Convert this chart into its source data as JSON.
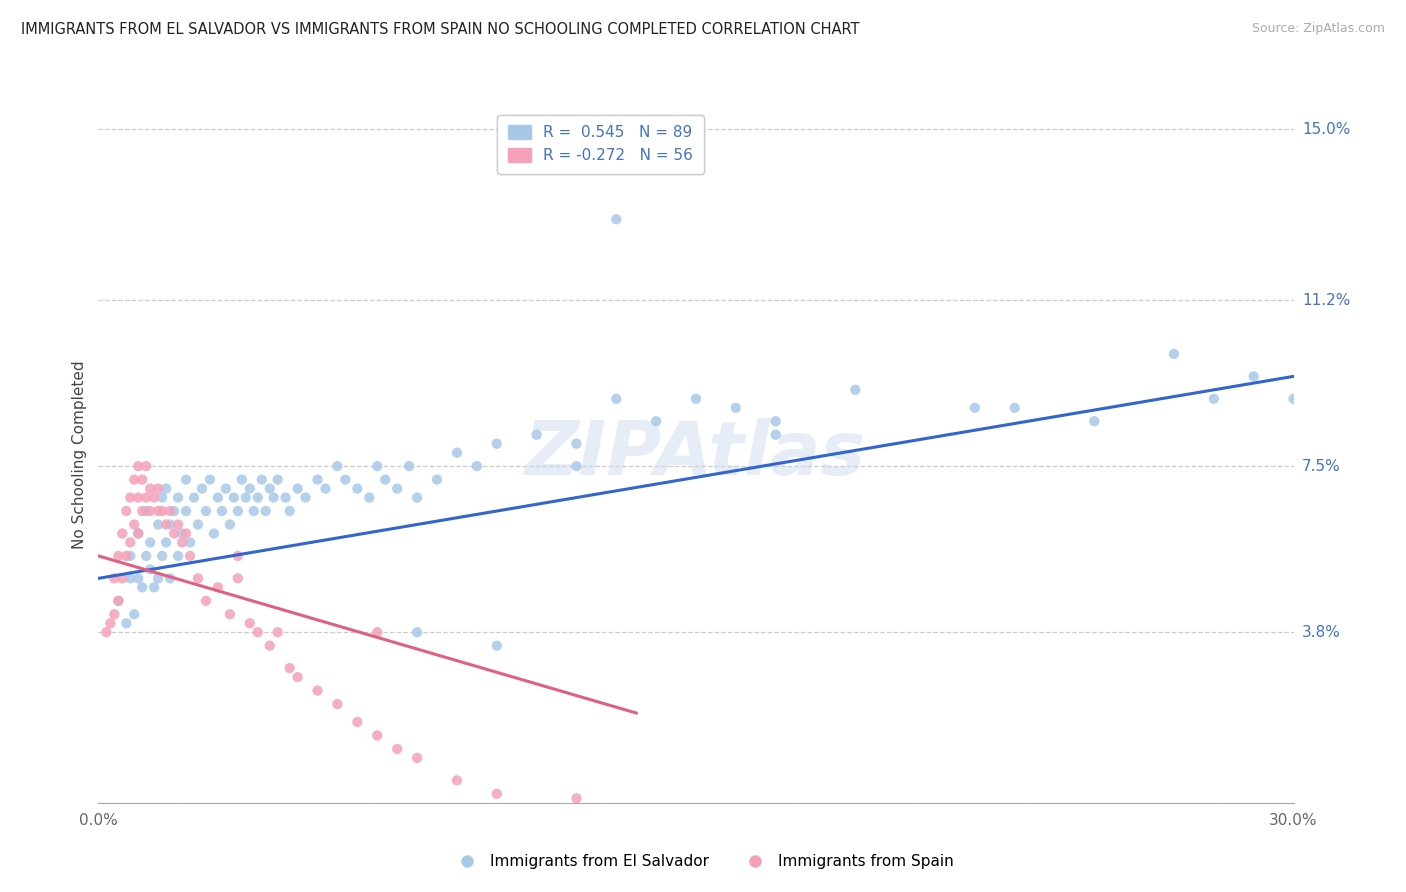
{
  "title": "IMMIGRANTS FROM EL SALVADOR VS IMMIGRANTS FROM SPAIN NO SCHOOLING COMPLETED CORRELATION CHART",
  "source": "Source: ZipAtlas.com",
  "ylabel": "No Schooling Completed",
  "xmin": 0.0,
  "xmax": 0.3,
  "ymin": 0.0,
  "ymax": 0.155,
  "ytick_vals": [
    0.0,
    0.038,
    0.075,
    0.112,
    0.15
  ],
  "ytick_labels": [
    "",
    "3.8%",
    "7.5%",
    "11.2%",
    "15.0%"
  ],
  "xtick_vals": [
    0.0,
    0.05,
    0.1,
    0.15,
    0.2,
    0.25,
    0.3
  ],
  "xtick_labels": [
    "0.0%",
    "",
    "",
    "",
    "",
    "",
    "30.0%"
  ],
  "blue_R": 0.545,
  "blue_N": 89,
  "pink_R": -0.272,
  "pink_N": 56,
  "blue_scatter_color": "#a8c8e8",
  "pink_scatter_color": "#f4a0b8",
  "blue_line_color": "#3366cc",
  "pink_line_color": "#e06080",
  "watermark": "ZIPAtlas",
  "legend_label_blue": "Immigrants from El Salvador",
  "legend_label_pink": "Immigrants from Spain",
  "blue_line_x0": 0.0,
  "blue_line_x1": 0.3,
  "blue_line_y0": 0.05,
  "blue_line_y1": 0.095,
  "pink_line_x0": 0.0,
  "pink_line_x1": 0.135,
  "pink_line_y0": 0.055,
  "pink_line_y1": 0.02,
  "blue_scatter_x": [
    0.005,
    0.007,
    0.008,
    0.008,
    0.009,
    0.01,
    0.01,
    0.011,
    0.012,
    0.012,
    0.013,
    0.013,
    0.014,
    0.015,
    0.015,
    0.016,
    0.016,
    0.017,
    0.017,
    0.018,
    0.018,
    0.019,
    0.02,
    0.02,
    0.021,
    0.022,
    0.022,
    0.023,
    0.024,
    0.025,
    0.026,
    0.027,
    0.028,
    0.029,
    0.03,
    0.031,
    0.032,
    0.033,
    0.034,
    0.035,
    0.036,
    0.037,
    0.038,
    0.039,
    0.04,
    0.041,
    0.042,
    0.043,
    0.044,
    0.045,
    0.047,
    0.048,
    0.05,
    0.052,
    0.055,
    0.057,
    0.06,
    0.062,
    0.065,
    0.068,
    0.07,
    0.072,
    0.075,
    0.078,
    0.08,
    0.085,
    0.09,
    0.095,
    0.1,
    0.11,
    0.12,
    0.13,
    0.14,
    0.15,
    0.16,
    0.17,
    0.19,
    0.22,
    0.25,
    0.27,
    0.28,
    0.29,
    0.3,
    0.13,
    0.17,
    0.23,
    0.08,
    0.1,
    0.12
  ],
  "blue_scatter_y": [
    0.045,
    0.04,
    0.05,
    0.055,
    0.042,
    0.05,
    0.06,
    0.048,
    0.055,
    0.065,
    0.052,
    0.058,
    0.048,
    0.05,
    0.062,
    0.055,
    0.068,
    0.058,
    0.07,
    0.062,
    0.05,
    0.065,
    0.055,
    0.068,
    0.06,
    0.065,
    0.072,
    0.058,
    0.068,
    0.062,
    0.07,
    0.065,
    0.072,
    0.06,
    0.068,
    0.065,
    0.07,
    0.062,
    0.068,
    0.065,
    0.072,
    0.068,
    0.07,
    0.065,
    0.068,
    0.072,
    0.065,
    0.07,
    0.068,
    0.072,
    0.068,
    0.065,
    0.07,
    0.068,
    0.072,
    0.07,
    0.075,
    0.072,
    0.07,
    0.068,
    0.075,
    0.072,
    0.07,
    0.075,
    0.068,
    0.072,
    0.078,
    0.075,
    0.08,
    0.082,
    0.075,
    0.09,
    0.085,
    0.09,
    0.088,
    0.085,
    0.092,
    0.088,
    0.085,
    0.1,
    0.09,
    0.095,
    0.09,
    0.13,
    0.082,
    0.088,
    0.038,
    0.035,
    0.08
  ],
  "pink_scatter_x": [
    0.002,
    0.003,
    0.004,
    0.004,
    0.005,
    0.005,
    0.006,
    0.006,
    0.007,
    0.007,
    0.008,
    0.008,
    0.009,
    0.009,
    0.01,
    0.01,
    0.01,
    0.011,
    0.011,
    0.012,
    0.012,
    0.013,
    0.013,
    0.014,
    0.015,
    0.015,
    0.016,
    0.017,
    0.018,
    0.019,
    0.02,
    0.021,
    0.022,
    0.023,
    0.025,
    0.027,
    0.03,
    0.033,
    0.035,
    0.038,
    0.04,
    0.043,
    0.045,
    0.048,
    0.05,
    0.055,
    0.06,
    0.065,
    0.07,
    0.075,
    0.08,
    0.09,
    0.1,
    0.12,
    0.07,
    0.035
  ],
  "pink_scatter_y": [
    0.038,
    0.04,
    0.042,
    0.05,
    0.045,
    0.055,
    0.05,
    0.06,
    0.055,
    0.065,
    0.058,
    0.068,
    0.062,
    0.072,
    0.06,
    0.068,
    0.075,
    0.065,
    0.072,
    0.068,
    0.075,
    0.065,
    0.07,
    0.068,
    0.065,
    0.07,
    0.065,
    0.062,
    0.065,
    0.06,
    0.062,
    0.058,
    0.06,
    0.055,
    0.05,
    0.045,
    0.048,
    0.042,
    0.05,
    0.04,
    0.038,
    0.035,
    0.038,
    0.03,
    0.028,
    0.025,
    0.022,
    0.018,
    0.015,
    0.012,
    0.01,
    0.005,
    0.002,
    0.001,
    0.038,
    0.055
  ]
}
